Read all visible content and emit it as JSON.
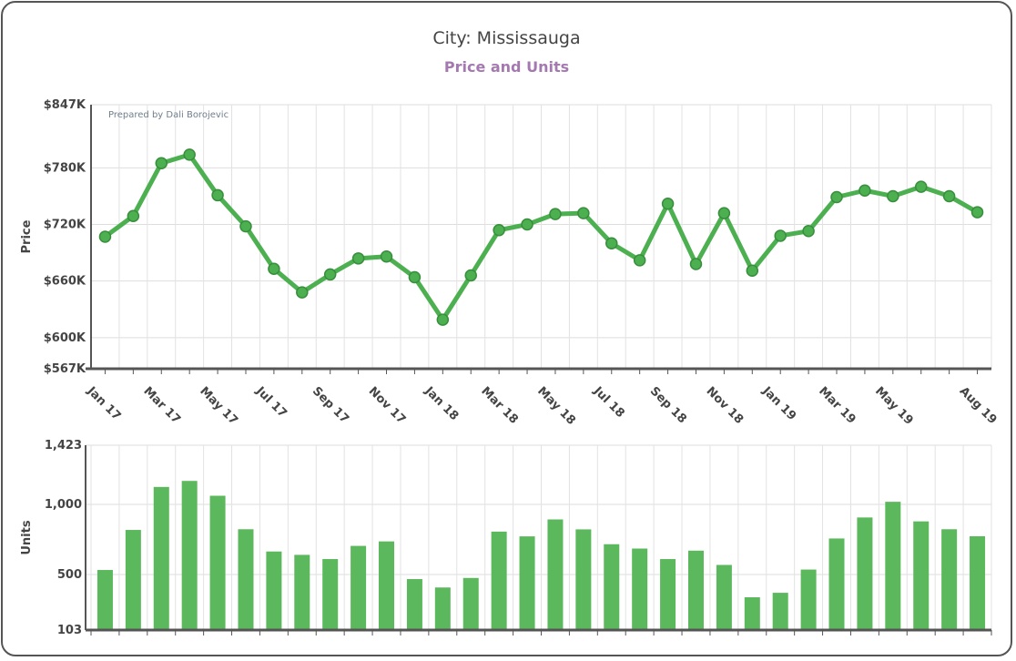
{
  "header": {
    "title": "City: Mississauga",
    "subtitle": "Price and Units"
  },
  "chart_data": [
    {
      "type": "line",
      "title": "City: Mississauga",
      "subtitle": "Price and Units",
      "ylabel": "Price",
      "credit": "Prepared by Dali Borojevic",
      "ylim": [
        567,
        847
      ],
      "y_ticks": [
        {
          "value": 847,
          "label": "$847K"
        },
        {
          "value": 780,
          "label": "$780K"
        },
        {
          "value": 720,
          "label": "$720K"
        },
        {
          "value": 660,
          "label": "$660K"
        },
        {
          "value": 600,
          "label": "$600K"
        },
        {
          "value": 567,
          "label": "$567K"
        }
      ],
      "x": [
        "Jan 17",
        "Feb 17",
        "Mar 17",
        "Apr 17",
        "May 17",
        "Jun 17",
        "Jul 17",
        "Aug 17",
        "Sep 17",
        "Oct 17",
        "Nov 17",
        "Dec 17",
        "Jan 18",
        "Feb 18",
        "Mar 18",
        "Apr 18",
        "May 18",
        "Jun 18",
        "Jul 18",
        "Aug 18",
        "Sep 18",
        "Oct 18",
        "Nov 18",
        "Dec 18",
        "Jan 19",
        "Feb 19",
        "Mar 19",
        "Apr 19",
        "May 19",
        "Jun 19",
        "Jul 19",
        "Aug 19"
      ],
      "x_tick_labels": [
        "Jan 17",
        "",
        "Mar 17",
        "",
        "May 17",
        "",
        "Jul 17",
        "",
        "Sep 17",
        "",
        "Nov 17",
        "",
        "Jan 18",
        "",
        "Mar 18",
        "",
        "May 18",
        "",
        "Jul 18",
        "",
        "Sep 18",
        "",
        "Nov 18",
        "",
        "Jan 19",
        "",
        "Mar 19",
        "",
        "May 19",
        "",
        "",
        "Aug 19"
      ],
      "series": [
        {
          "values": [
            707,
            729,
            785,
            794,
            751,
            718,
            673,
            648,
            667,
            684,
            686,
            664,
            619,
            666,
            714,
            720,
            731,
            732,
            700,
            682,
            742,
            678,
            732,
            671,
            708,
            713,
            749,
            756,
            750,
            760,
            750,
            733
          ]
        }
      ],
      "color": "#4caf50",
      "grid": true
    },
    {
      "type": "bar",
      "ylabel": "Units",
      "ylim": [
        103,
        1423
      ],
      "y_ticks": [
        {
          "value": 1423,
          "label": "1,423"
        },
        {
          "value": 1000,
          "label": "1,000"
        },
        {
          "value": 500,
          "label": "500"
        },
        {
          "value": 103,
          "label": "103"
        }
      ],
      "categories": [
        "Jan 17",
        "Feb 17",
        "Mar 17",
        "Apr 17",
        "May 17",
        "Jun 17",
        "Jul 17",
        "Aug 17",
        "Sep 17",
        "Oct 17",
        "Nov 17",
        "Dec 17",
        "Jan 18",
        "Feb 18",
        "Mar 18",
        "Apr 18",
        "May 18",
        "Jun 18",
        "Jul 18",
        "Aug 18",
        "Sep 18",
        "Oct 18",
        "Nov 18",
        "Dec 18",
        "Jan 19",
        "Feb 19",
        "Mar 19",
        "Apr 19",
        "May 19",
        "Jun 19",
        "Jul 19",
        "Aug 19"
      ],
      "series": [
        {
          "values": [
            532,
            818,
            1125,
            1168,
            1062,
            823,
            664,
            640,
            610,
            704,
            736,
            467,
            407,
            475,
            806,
            772,
            893,
            822,
            716,
            685,
            610,
            670,
            568,
            337,
            369,
            535,
            757,
            907,
            1019,
            879,
            823,
            773
          ]
        }
      ],
      "color": "#5cb85c",
      "grid": true
    }
  ]
}
